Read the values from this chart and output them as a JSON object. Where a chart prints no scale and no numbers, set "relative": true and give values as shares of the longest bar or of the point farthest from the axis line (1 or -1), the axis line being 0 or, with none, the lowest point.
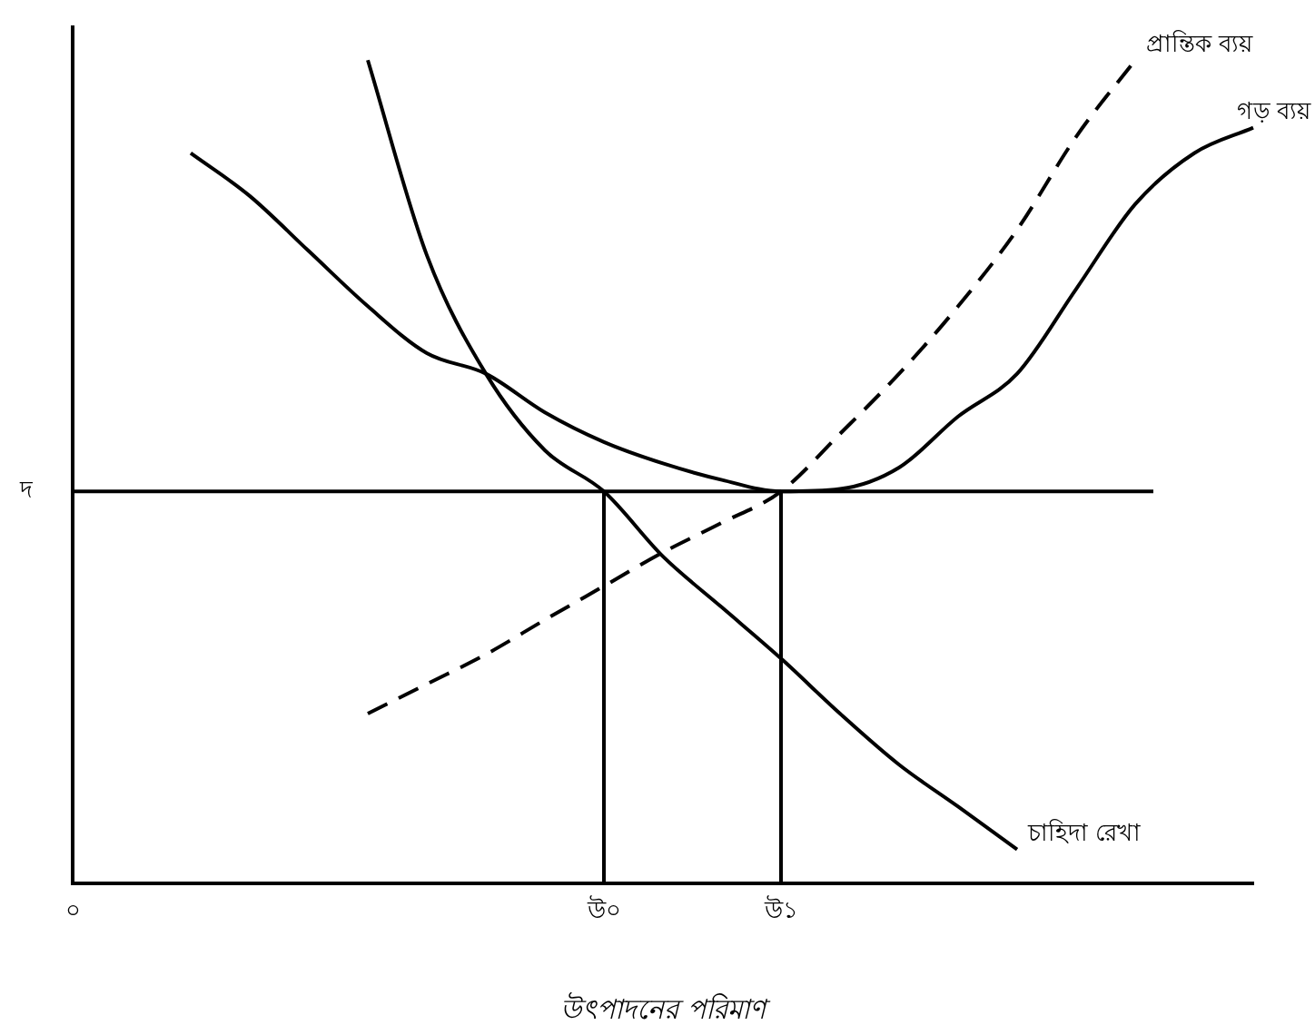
{
  "chart_data": {
    "type": "line",
    "relative": true,
    "xlabel": "উৎপাদনের পরিমাণ",
    "categories": [
      "০",
      null,
      null,
      null,
      null,
      null,
      null,
      null,
      null,
      "উ০",
      null,
      null,
      "উ১",
      null,
      null,
      null,
      null,
      null,
      null,
      null,
      null
    ],
    "legend": false,
    "grid": false,
    "marker": "none",
    "ref_lines": [
      {
        "axis": "y",
        "value": 0.476,
        "label": "দ",
        "color": "#000000"
      },
      {
        "axis": "x",
        "value": "উ০",
        "color": "#000000"
      },
      {
        "axis": "x",
        "value": "উ১",
        "color": "#000000"
      }
    ],
    "series": [
      {
        "name": "চাহিদা রেখা",
        "color": "#000000",
        "line_style": "solid",
        "values": [
          null,
          null,
          null,
          null,
          null,
          1,
          0.763,
          0.619,
          0.526,
          0.476,
          0.397,
          0.335,
          0.273,
          0.206,
          0.144,
          0.093,
          0.041,
          null,
          null,
          null,
          null
        ]
      },
      {
        "name": "গড় ব্যয়",
        "color": "#000000",
        "line_style": "solid",
        "values": [
          null,
          null,
          0.887,
          0.835,
          0.768,
          0.701,
          0.644,
          0.619,
          0.572,
          0.536,
          0.51,
          0.49,
          0.476,
          0.479,
          0.505,
          0.567,
          0.619,
          0.722,
          0.825,
          0.887,
          0.918
        ]
      },
      {
        "name": "প্রান্তিক ব্যয়",
        "color": "#000000",
        "line_style": "dashed",
        "values": [
          null,
          null,
          null,
          null,
          null,
          0.206,
          0.242,
          0.278,
          0.32,
          0.361,
          0.402,
          0.438,
          0.476,
          0.546,
          0.619,
          0.701,
          0.794,
          0.907,
          1,
          null,
          null
        ]
      }
    ]
  }
}
